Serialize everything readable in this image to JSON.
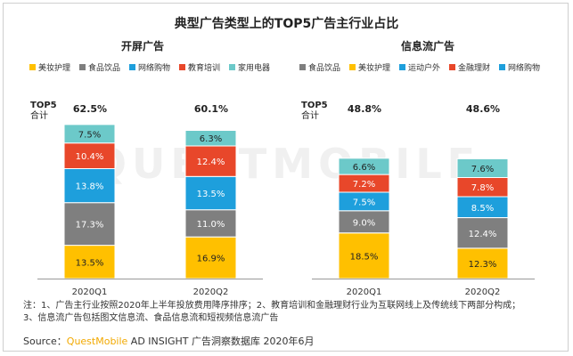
{
  "title": "典型广告类型上的TOP5广告主行业占比",
  "colors": {
    "美妆护理": "#ffc000",
    "食品饮品": "#7f7f7f",
    "网络购物": "#1e9fdc",
    "教育培训": "#e8472a",
    "家用电器": "#6cc9c9",
    "运动户外": "#1e9fdc",
    "金融理财": "#e8472a"
  },
  "watermark": "QUESTMOBILE",
  "chart_data": [
    {
      "type": "bar",
      "stacked": true,
      "title": "开屏广告",
      "legend": [
        "美妆护理",
        "食品饮品",
        "网络购物",
        "教育培训",
        "家用电器"
      ],
      "categories": [
        "2020Q1",
        "2020Q2"
      ],
      "top5_label": "TOP5\n合计",
      "top5_line1": "TOP5",
      "top5_line2": "合计",
      "totals": [
        "62.5%",
        "60.1%"
      ],
      "series": [
        {
          "name": "美妆护理",
          "values": [
            13.5,
            16.9
          ],
          "labels": [
            "13.5%",
            "16.9%"
          ]
        },
        {
          "name": "食品饮品",
          "values": [
            17.3,
            11.0
          ],
          "labels": [
            "17.3%",
            "11.0%"
          ]
        },
        {
          "name": "网络购物",
          "values": [
            13.8,
            13.5
          ],
          "labels": [
            "13.8%",
            "13.5%"
          ]
        },
        {
          "name": "教育培训",
          "values": [
            10.4,
            12.4
          ],
          "labels": [
            "10.4%",
            "12.4%"
          ]
        },
        {
          "name": "家用电器",
          "values": [
            7.5,
            6.3
          ],
          "labels": [
            "7.5%",
            "6.3%"
          ]
        }
      ]
    },
    {
      "type": "bar",
      "stacked": true,
      "title": "信息流广告",
      "legend": [
        "食品饮品",
        "美妆护理",
        "运动户外",
        "金融理财",
        "网络购物"
      ],
      "categories": [
        "2020Q1",
        "2020Q2"
      ],
      "top5_line1": "TOP5",
      "top5_line2": "合计",
      "totals": [
        "48.8%",
        "48.6%"
      ],
      "series": [
        {
          "name": "食品饮品",
          "values": [
            18.5,
            12.3
          ],
          "labels": [
            "18.5%",
            "12.3%"
          ],
          "colors": [
            "#ffc000",
            "#ffc000"
          ]
        },
        {
          "name": "美妆护理",
          "values": [
            9.0,
            12.4
          ],
          "labels": [
            "9.0%",
            "12.4%"
          ],
          "colors": [
            "#7f7f7f",
            "#7f7f7f"
          ]
        },
        {
          "name": "运动户外",
          "values": [
            7.5,
            8.5
          ],
          "labels": [
            "7.5%",
            "8.5%"
          ],
          "colors": [
            "#1e9fdc",
            "#1e9fdc"
          ]
        },
        {
          "name": "金融理财",
          "values": [
            7.2,
            7.8
          ],
          "labels": [
            "7.2%",
            "7.8%"
          ],
          "colors": [
            "#e8472a",
            "#e8472a"
          ]
        },
        {
          "name": "网络购物",
          "values": [
            6.6,
            7.6
          ],
          "labels": [
            "6.6%",
            "7.6%"
          ],
          "colors": [
            "#6cc9c9",
            "#6cc9c9"
          ]
        }
      ]
    }
  ],
  "notes": {
    "line1": "注：1、广告主行业按照2020年上半年投放费用降序排序；2、教育培训和金融理财行业为互联网线上及传统线下两部分构成；",
    "line2": "3、信息流广告包括图文信息流、食品信息流和短视频信息流广告"
  },
  "source": {
    "prefix": "Source：",
    "brand": "QuestMobile",
    "rest": " AD INSIGHT 广告洞察数据库 2020年6月"
  }
}
